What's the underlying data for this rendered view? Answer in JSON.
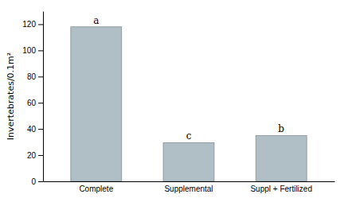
{
  "chart_data": {
    "type": "bar",
    "categories": [
      "Complete",
      "Supplemental",
      "Suppl + Fertilized"
    ],
    "values": [
      118,
      29.5,
      35
    ],
    "color": "#b0bec5",
    "annotations": [
      "a",
      "c",
      "b"
    ],
    "ylabel": "Invertebrates/0.1m²",
    "ylim": [
      0,
      130
    ],
    "yticks": [
      0,
      20,
      40,
      60,
      80,
      100,
      120
    ],
    "grid": false
  }
}
